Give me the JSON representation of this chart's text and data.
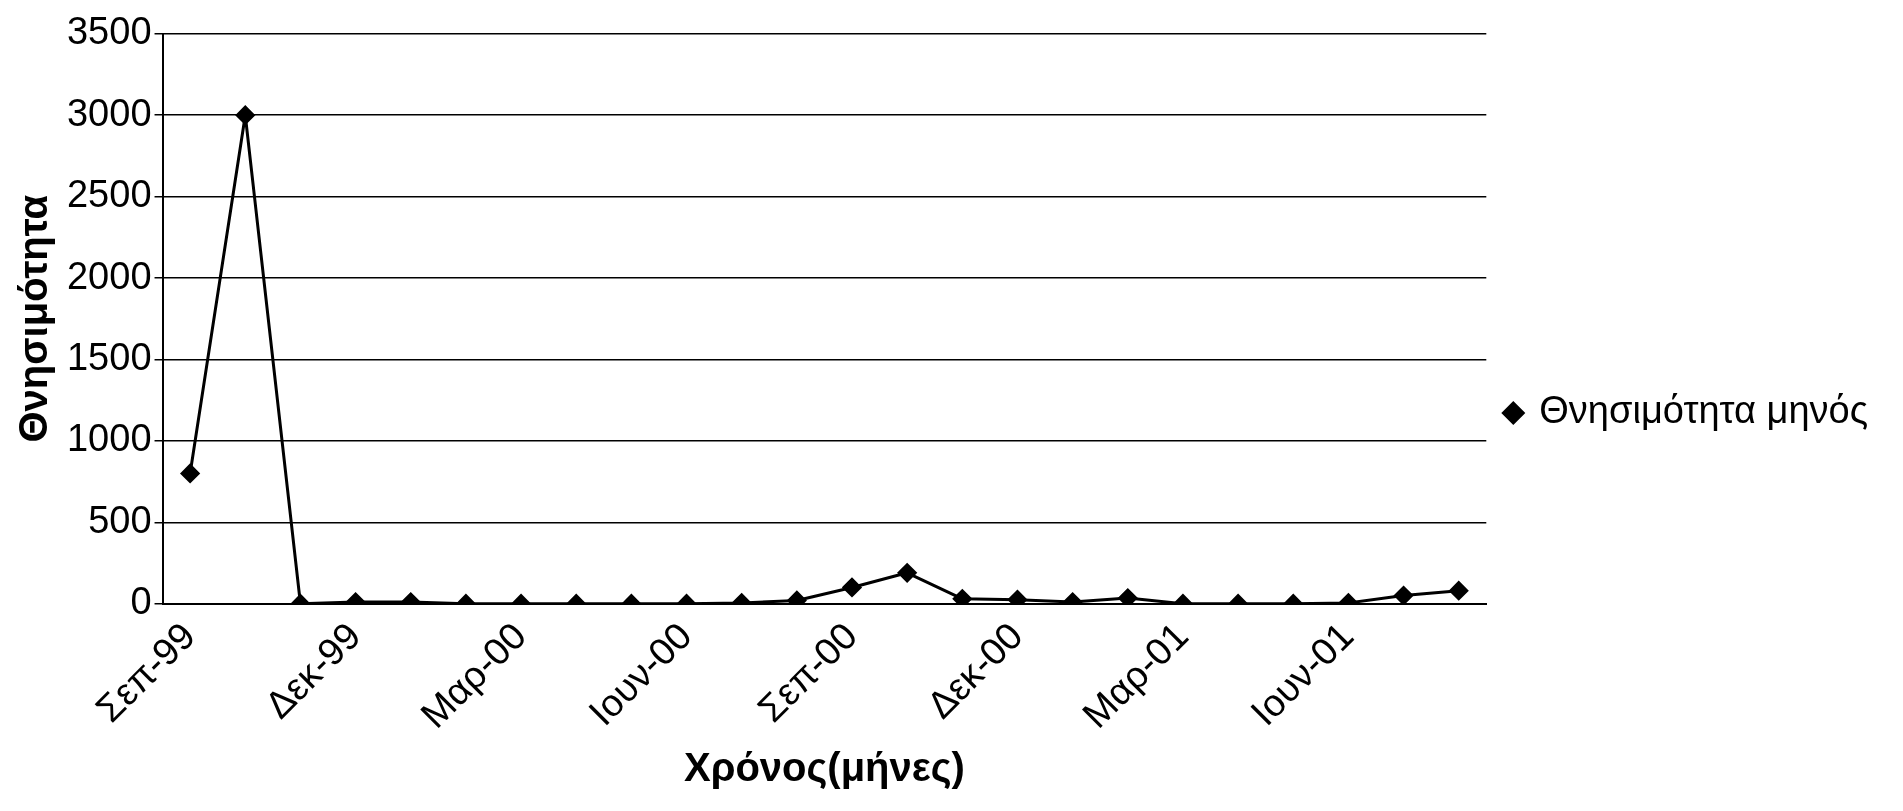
{
  "chart_data": {
    "type": "line",
    "xlabel": "Χρόνος(μήνες)",
    "ylabel": "Θνησιμότητα",
    "categories": [
      "Σεπ-99",
      null,
      null,
      "Δεκ-99",
      null,
      null,
      "Μαρ-00",
      null,
      null,
      "Ιουν-00",
      null,
      null,
      "Σεπ-00",
      null,
      null,
      "Δεκ-00",
      null,
      null,
      "Μαρ-01",
      null,
      null,
      "Ιουν-01",
      null,
      null
    ],
    "series": [
      {
        "name": "Θνησιμότητα μηνός",
        "color": "#000000",
        "values": [
          800,
          3000,
          0,
          10,
          10,
          0,
          0,
          0,
          0,
          0,
          5,
          20,
          100,
          190,
          30,
          25,
          10,
          35,
          0,
          0,
          0,
          5,
          50,
          80
        ]
      }
    ],
    "ylim": [
      0,
      3500
    ],
    "yticks": [
      0,
      500,
      1000,
      1500,
      2000,
      2500,
      3000,
      3500
    ],
    "grid": "y",
    "legend": "right",
    "marker": "diamond",
    "line_style": "solid"
  }
}
